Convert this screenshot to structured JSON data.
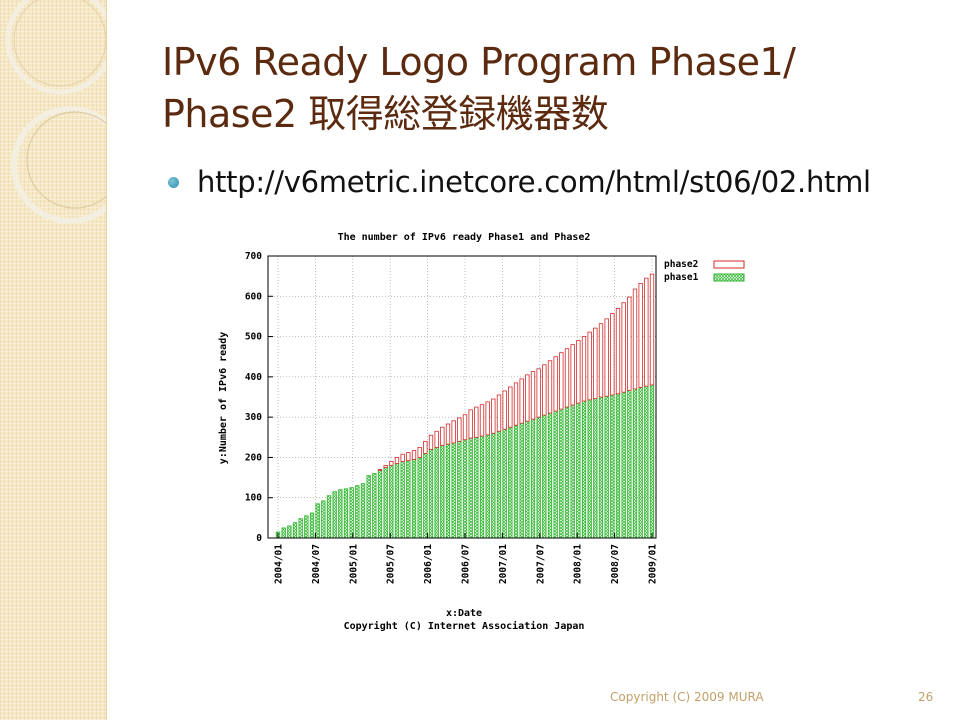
{
  "slide": {
    "title_line1": "IPv6 Ready Logo Program Phase1/",
    "title_line2": "Phase2 取得総登録機器数",
    "bullet": "http://v6metric.inetcore.com/html/st06/02.html",
    "footer_copyright": "Copyright (C) 2009 MURA",
    "page_number": "26"
  },
  "colors": {
    "title": "#5b2a0f",
    "bullet": "#2f8fae",
    "phase2": "#d42a2a",
    "phase1": "#2fb52f",
    "footer": "#c2a06a"
  },
  "chart_data": {
    "type": "bar",
    "stacked": true,
    "title": "The number of IPv6 ready Phase1 and Phase2",
    "xlabel": "x:Date",
    "ylabel": "y:Number of IPv6 ready",
    "caption": "Copyright (C) Internet Association Japan",
    "ylim": [
      0,
      700
    ],
    "yticks": [
      0,
      100,
      200,
      300,
      400,
      500,
      600,
      700
    ],
    "xtick_labels": [
      "2004/01",
      "2004/07",
      "2005/01",
      "2005/07",
      "2006/01",
      "2006/07",
      "2007/01",
      "2007/07",
      "2008/01",
      "2008/07",
      "2009/01"
    ],
    "xlim": [
      "2004/01",
      "2009/01"
    ],
    "legend_position": "top-right",
    "grid": true,
    "series": [
      {
        "name": "phase1",
        "values": [
          15,
          25,
          30,
          38,
          48,
          55,
          62,
          85,
          92,
          105,
          115,
          120,
          122,
          125,
          130,
          135,
          155,
          160,
          168,
          175,
          180,
          185,
          190,
          192,
          195,
          200,
          210,
          220,
          225,
          230,
          233,
          236,
          240,
          244,
          248,
          250,
          253,
          256,
          260,
          265,
          270,
          275,
          280,
          285,
          290,
          295,
          300,
          305,
          310,
          315,
          320,
          325,
          330,
          335,
          340,
          343,
          346,
          350,
          352,
          355,
          358,
          362,
          366,
          370,
          374,
          377,
          380
        ]
      },
      {
        "name": "phase2",
        "values": [
          0,
          0,
          0,
          0,
          0,
          0,
          0,
          0,
          0,
          0,
          0,
          0,
          0,
          0,
          0,
          0,
          0,
          0,
          2,
          5,
          10,
          15,
          18,
          20,
          22,
          25,
          30,
          35,
          40,
          45,
          50,
          55,
          58,
          62,
          70,
          75,
          78,
          82,
          85,
          90,
          95,
          100,
          105,
          110,
          115,
          118,
          120,
          125,
          130,
          135,
          140,
          145,
          150,
          155,
          160,
          168,
          175,
          182,
          192,
          202,
          212,
          222,
          232,
          248,
          258,
          268,
          275
        ]
      }
    ]
  }
}
